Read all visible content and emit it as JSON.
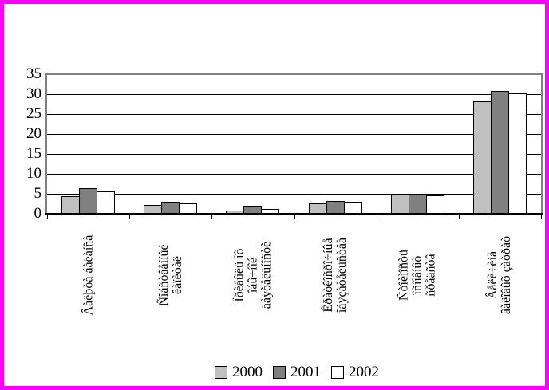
{
  "chart_data": {
    "type": "bar",
    "title": "",
    "xlabel": "",
    "ylabel": "",
    "categories": [
      "Âàëþòà áàëàíñà",
      "Ñîáñòâåííûé\nêàïèòàë",
      "Ïðèáûëü îò\nîáû÷íîé\näåÿòåëüíîñòè",
      "Êðàòêîñðî÷íûå\nîáÿçàòåëüñòâà",
      "Ñòîèìîñòü\nîñíîâíûõ\nñðåäñòâ",
      "Âåëè÷èíà\nâàëîâûõ çàòðàò"
    ],
    "series": [
      {
        "name": "2000",
        "color": "#c0c0c0",
        "values": [
          4.4,
          2.2,
          0.7,
          2.5,
          4.8,
          28.1
        ]
      },
      {
        "name": "2001",
        "color": "#808080",
        "values": [
          6.3,
          2.9,
          1.9,
          3.1,
          4.9,
          30.8
        ]
      },
      {
        "name": "2002",
        "color": "#ffffff",
        "values": [
          5.6,
          2.6,
          1.2,
          3.0,
          4.6,
          30.1
        ]
      }
    ],
    "ylim": [
      0,
      35
    ],
    "yticks": [
      0,
      5,
      10,
      15,
      20,
      25,
      30,
      35
    ],
    "grid": true,
    "legend_position": "bottom",
    "colors": {
      "page_border": "#ff00ff",
      "plot_frame": "#808080",
      "gridline": "#000000",
      "axis": "#000000",
      "background": "#ffffff"
    }
  }
}
